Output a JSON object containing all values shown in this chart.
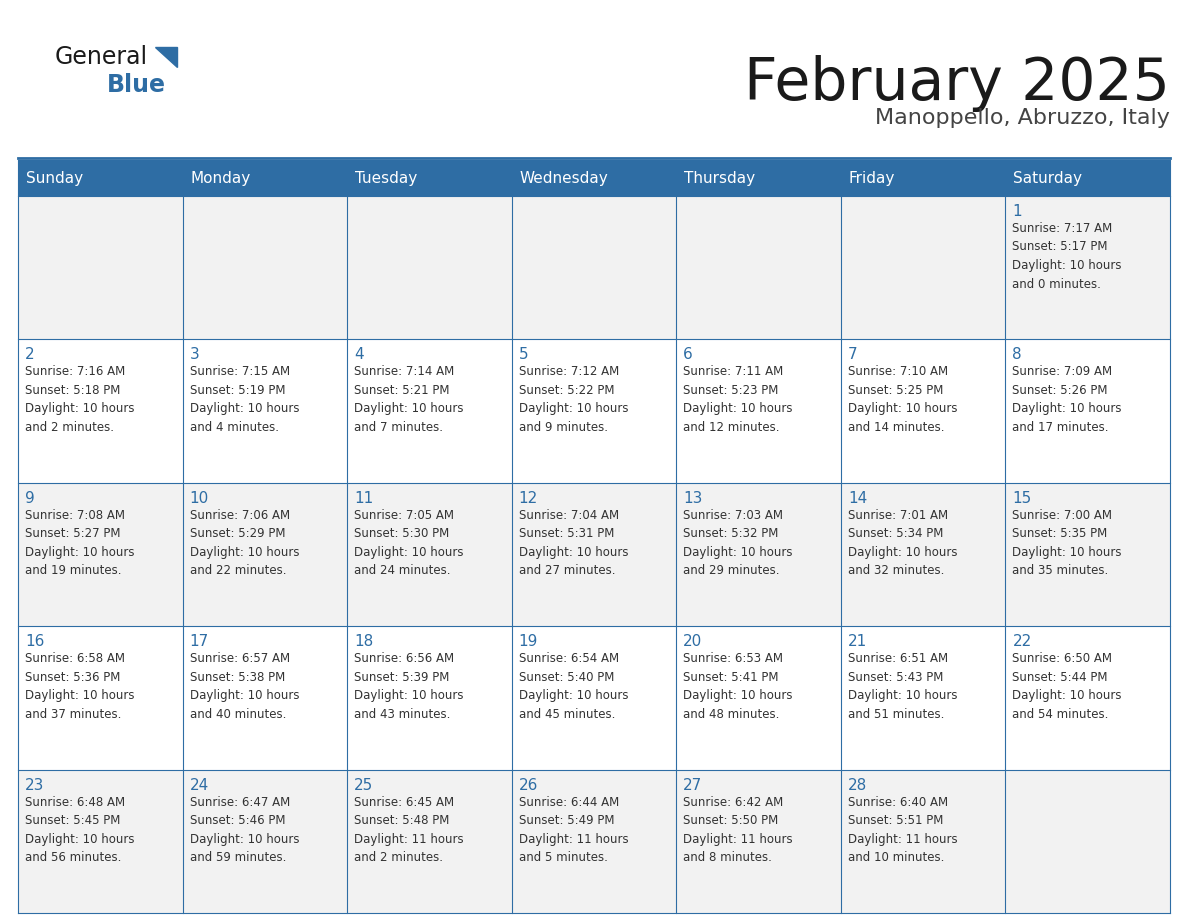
{
  "title": "February 2025",
  "subtitle": "Manoppello, Abruzzo, Italy",
  "header_bg": "#2E6DA4",
  "header_text_color": "#FFFFFF",
  "cell_bg": "#FFFFFF",
  "cell_bg_alt": "#F2F2F2",
  "border_color": "#2E6DA4",
  "day_headers": [
    "Sunday",
    "Monday",
    "Tuesday",
    "Wednesday",
    "Thursday",
    "Friday",
    "Saturday"
  ],
  "title_color": "#1a1a1a",
  "subtitle_color": "#444444",
  "day_num_color": "#2E6DA4",
  "cell_text_color": "#333333",
  "weeks": [
    [
      {
        "day": "",
        "info": ""
      },
      {
        "day": "",
        "info": ""
      },
      {
        "day": "",
        "info": ""
      },
      {
        "day": "",
        "info": ""
      },
      {
        "day": "",
        "info": ""
      },
      {
        "day": "",
        "info": ""
      },
      {
        "day": "1",
        "info": "Sunrise: 7:17 AM\nSunset: 5:17 PM\nDaylight: 10 hours\nand 0 minutes."
      }
    ],
    [
      {
        "day": "2",
        "info": "Sunrise: 7:16 AM\nSunset: 5:18 PM\nDaylight: 10 hours\nand 2 minutes."
      },
      {
        "day": "3",
        "info": "Sunrise: 7:15 AM\nSunset: 5:19 PM\nDaylight: 10 hours\nand 4 minutes."
      },
      {
        "day": "4",
        "info": "Sunrise: 7:14 AM\nSunset: 5:21 PM\nDaylight: 10 hours\nand 7 minutes."
      },
      {
        "day": "5",
        "info": "Sunrise: 7:12 AM\nSunset: 5:22 PM\nDaylight: 10 hours\nand 9 minutes."
      },
      {
        "day": "6",
        "info": "Sunrise: 7:11 AM\nSunset: 5:23 PM\nDaylight: 10 hours\nand 12 minutes."
      },
      {
        "day": "7",
        "info": "Sunrise: 7:10 AM\nSunset: 5:25 PM\nDaylight: 10 hours\nand 14 minutes."
      },
      {
        "day": "8",
        "info": "Sunrise: 7:09 AM\nSunset: 5:26 PM\nDaylight: 10 hours\nand 17 minutes."
      }
    ],
    [
      {
        "day": "9",
        "info": "Sunrise: 7:08 AM\nSunset: 5:27 PM\nDaylight: 10 hours\nand 19 minutes."
      },
      {
        "day": "10",
        "info": "Sunrise: 7:06 AM\nSunset: 5:29 PM\nDaylight: 10 hours\nand 22 minutes."
      },
      {
        "day": "11",
        "info": "Sunrise: 7:05 AM\nSunset: 5:30 PM\nDaylight: 10 hours\nand 24 minutes."
      },
      {
        "day": "12",
        "info": "Sunrise: 7:04 AM\nSunset: 5:31 PM\nDaylight: 10 hours\nand 27 minutes."
      },
      {
        "day": "13",
        "info": "Sunrise: 7:03 AM\nSunset: 5:32 PM\nDaylight: 10 hours\nand 29 minutes."
      },
      {
        "day": "14",
        "info": "Sunrise: 7:01 AM\nSunset: 5:34 PM\nDaylight: 10 hours\nand 32 minutes."
      },
      {
        "day": "15",
        "info": "Sunrise: 7:00 AM\nSunset: 5:35 PM\nDaylight: 10 hours\nand 35 minutes."
      }
    ],
    [
      {
        "day": "16",
        "info": "Sunrise: 6:58 AM\nSunset: 5:36 PM\nDaylight: 10 hours\nand 37 minutes."
      },
      {
        "day": "17",
        "info": "Sunrise: 6:57 AM\nSunset: 5:38 PM\nDaylight: 10 hours\nand 40 minutes."
      },
      {
        "day": "18",
        "info": "Sunrise: 6:56 AM\nSunset: 5:39 PM\nDaylight: 10 hours\nand 43 minutes."
      },
      {
        "day": "19",
        "info": "Sunrise: 6:54 AM\nSunset: 5:40 PM\nDaylight: 10 hours\nand 45 minutes."
      },
      {
        "day": "20",
        "info": "Sunrise: 6:53 AM\nSunset: 5:41 PM\nDaylight: 10 hours\nand 48 minutes."
      },
      {
        "day": "21",
        "info": "Sunrise: 6:51 AM\nSunset: 5:43 PM\nDaylight: 10 hours\nand 51 minutes."
      },
      {
        "day": "22",
        "info": "Sunrise: 6:50 AM\nSunset: 5:44 PM\nDaylight: 10 hours\nand 54 minutes."
      }
    ],
    [
      {
        "day": "23",
        "info": "Sunrise: 6:48 AM\nSunset: 5:45 PM\nDaylight: 10 hours\nand 56 minutes."
      },
      {
        "day": "24",
        "info": "Sunrise: 6:47 AM\nSunset: 5:46 PM\nDaylight: 10 hours\nand 59 minutes."
      },
      {
        "day": "25",
        "info": "Sunrise: 6:45 AM\nSunset: 5:48 PM\nDaylight: 11 hours\nand 2 minutes."
      },
      {
        "day": "26",
        "info": "Sunrise: 6:44 AM\nSunset: 5:49 PM\nDaylight: 11 hours\nand 5 minutes."
      },
      {
        "day": "27",
        "info": "Sunrise: 6:42 AM\nSunset: 5:50 PM\nDaylight: 11 hours\nand 8 minutes."
      },
      {
        "day": "28",
        "info": "Sunrise: 6:40 AM\nSunset: 5:51 PM\nDaylight: 11 hours\nand 10 minutes."
      },
      {
        "day": "",
        "info": ""
      }
    ]
  ]
}
